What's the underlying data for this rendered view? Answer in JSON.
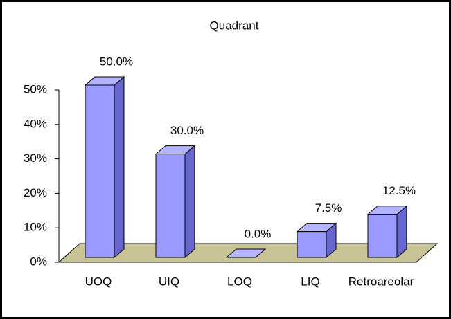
{
  "chart_data": {
    "type": "bar3d",
    "title": "Quadrant",
    "categories": [
      "UOQ",
      "UIQ",
      "LOQ",
      "LIQ",
      "Retroareolar"
    ],
    "values": [
      50,
      30,
      0,
      7.5,
      12.5
    ],
    "value_labels": [
      "50.0%",
      "30.0%",
      "0.0%",
      "7.5%",
      "12.5%"
    ],
    "color": "#9999ff",
    "ylim": [
      0,
      50
    ],
    "yticks": [
      {
        "value": 0,
        "label": "0%"
      },
      {
        "value": 10,
        "label": "10%"
      },
      {
        "value": 20,
        "label": "20%"
      },
      {
        "value": 30,
        "label": "30%"
      },
      {
        "value": 40,
        "label": "40%"
      },
      {
        "value": 50,
        "label": "50%"
      }
    ]
  }
}
